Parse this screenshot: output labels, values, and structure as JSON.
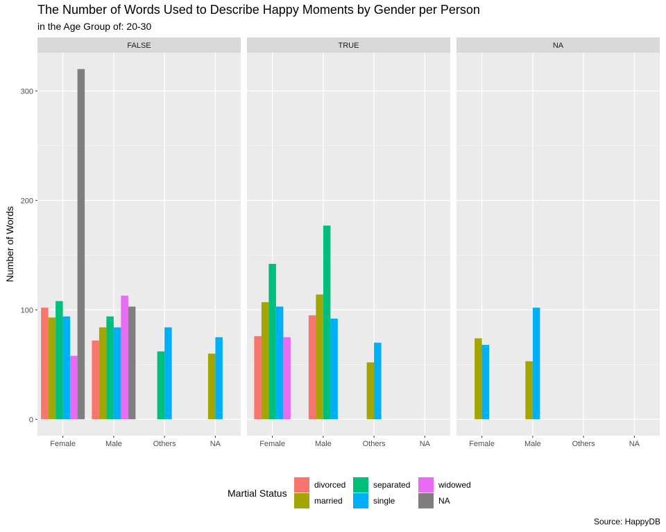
{
  "chart_data": {
    "type": "bar",
    "title": "The Number of Words Used to Describe Happy Moments by Gender per Person",
    "subtitle": "in the Age Group of: 20-30",
    "xlabel": "",
    "ylabel": "Number of Words",
    "caption": "Source: HappyDB",
    "ylim": [
      -15,
      335
    ],
    "yticks": [
      0,
      100,
      200,
      300
    ],
    "grid": true,
    "legend_position": "bottom",
    "legend_title": "Martial Status",
    "categories": [
      "Female",
      "Male",
      "Others",
      "NA"
    ],
    "series": [
      {
        "name": "divorced",
        "color": "#F8766D"
      },
      {
        "name": "married",
        "color": "#A3A500"
      },
      {
        "name": "separated",
        "color": "#00BF7D"
      },
      {
        "name": "single",
        "color": "#00B0F6"
      },
      {
        "name": "widowed",
        "color": "#E76BF3"
      },
      {
        "name": "NA",
        "color": "#7F7F7F"
      }
    ],
    "panels": [
      {
        "label": "FALSE",
        "groups": [
          {
            "category": "Female",
            "bars": [
              {
                "series": "divorced",
                "value": 102
              },
              {
                "series": "married",
                "value": 93
              },
              {
                "series": "separated",
                "value": 108
              },
              {
                "series": "single",
                "value": 94
              },
              {
                "series": "widowed",
                "value": 58
              },
              {
                "series": "NA",
                "value": 320
              }
            ]
          },
          {
            "category": "Male",
            "bars": [
              {
                "series": "divorced",
                "value": 72
              },
              {
                "series": "married",
                "value": 84
              },
              {
                "series": "separated",
                "value": 94
              },
              {
                "series": "single",
                "value": 84
              },
              {
                "series": "widowed",
                "value": 113
              },
              {
                "series": "NA",
                "value": 103
              }
            ]
          },
          {
            "category": "Others",
            "bars": [
              {
                "series": "separated",
                "value": 62
              },
              {
                "series": "single",
                "value": 84
              }
            ]
          },
          {
            "category": "NA",
            "bars": [
              {
                "series": "married",
                "value": 60
              },
              {
                "series": "single",
                "value": 75
              }
            ]
          }
        ]
      },
      {
        "label": "TRUE",
        "groups": [
          {
            "category": "Female",
            "bars": [
              {
                "series": "divorced",
                "value": 76
              },
              {
                "series": "married",
                "value": 107
              },
              {
                "series": "separated",
                "value": 142
              },
              {
                "series": "single",
                "value": 103
              },
              {
                "series": "widowed",
                "value": 75
              }
            ]
          },
          {
            "category": "Male",
            "bars": [
              {
                "series": "divorced",
                "value": 95
              },
              {
                "series": "married",
                "value": 114
              },
              {
                "series": "separated",
                "value": 177
              },
              {
                "series": "single",
                "value": 92
              }
            ]
          },
          {
            "category": "Others",
            "bars": [
              {
                "series": "married",
                "value": 52
              },
              {
                "series": "single",
                "value": 70
              }
            ]
          },
          {
            "category": "NA",
            "bars": []
          }
        ]
      },
      {
        "label": "NA",
        "groups": [
          {
            "category": "Female",
            "bars": [
              {
                "series": "married",
                "value": 74
              },
              {
                "series": "single",
                "value": 68
              }
            ]
          },
          {
            "category": "Male",
            "bars": [
              {
                "series": "married",
                "value": 53
              },
              {
                "series": "single",
                "value": 102
              }
            ]
          },
          {
            "category": "Others",
            "bars": []
          },
          {
            "category": "NA",
            "bars": []
          }
        ]
      }
    ]
  }
}
